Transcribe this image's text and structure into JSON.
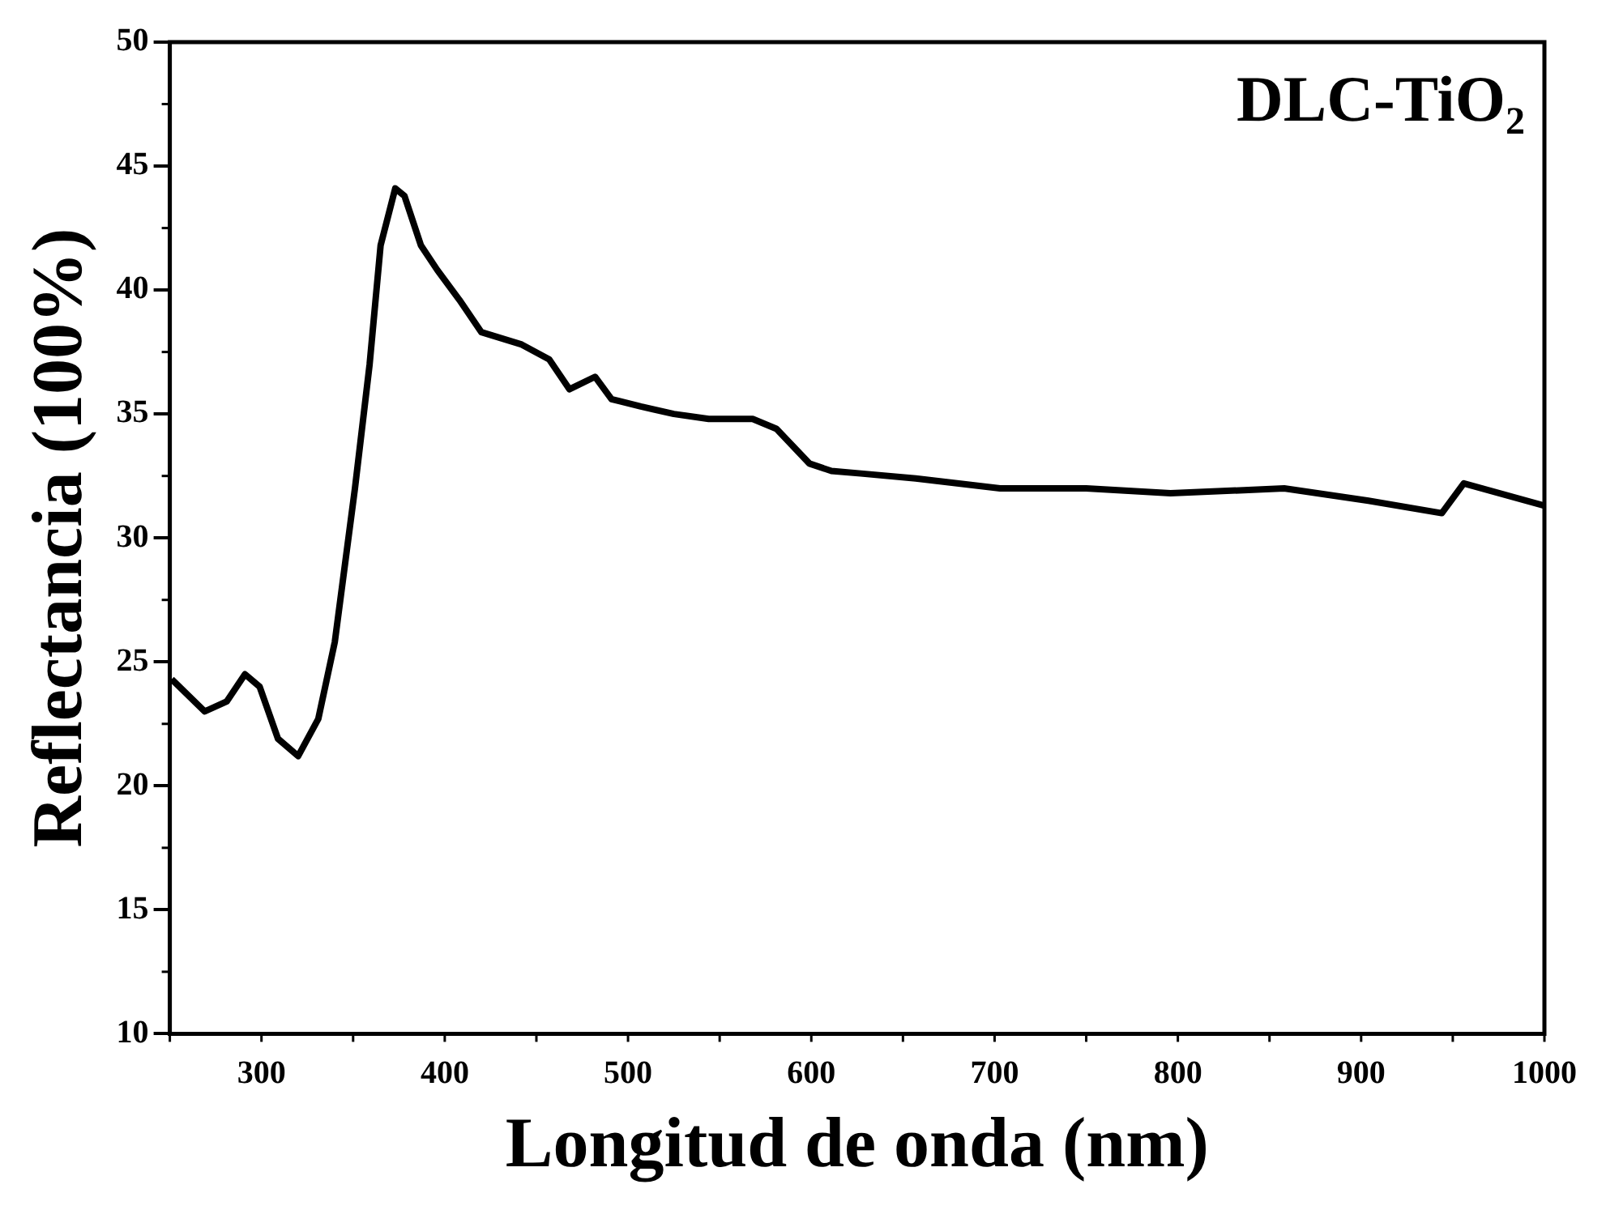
{
  "chart_data": {
    "type": "line",
    "title": "DLC-TiO₂",
    "xlabel": "Longitud de onda (nm)",
    "ylabel": "Reflectancia (100%)",
    "xlim": [
      250,
      1000
    ],
    "xticks": [
      300,
      400,
      500,
      600,
      700,
      800,
      900,
      1000
    ],
    "ylim": [
      10,
      50
    ],
    "yticks": [
      10,
      15,
      20,
      25,
      30,
      35,
      40,
      45,
      50
    ],
    "grid": false,
    "marker": "none",
    "line_style": "solid",
    "series": [
      {
        "color": "#000000",
        "x": [
          251,
          269,
          281,
          291,
          299,
          309,
          320,
          331,
          340,
          351,
          359,
          365,
          373,
          378,
          387,
          396,
          408,
          420,
          442,
          457,
          468,
          482,
          491,
          507,
          525,
          544,
          568,
          581,
          599,
          611,
          627,
          657,
          703,
          750,
          796,
          858,
          904,
          944,
          956,
          1000
        ],
        "values": [
          24.3,
          23.0,
          23.4,
          24.5,
          24.0,
          21.9,
          21.2,
          22.7,
          25.8,
          32.0,
          37.0,
          41.8,
          44.1,
          43.8,
          41.8,
          40.8,
          39.6,
          38.3,
          37.8,
          37.2,
          36.0,
          36.5,
          35.6,
          35.3,
          35.0,
          34.8,
          34.8,
          34.4,
          33.0,
          32.7,
          32.6,
          32.4,
          32.0,
          32.0,
          31.8,
          32.0,
          31.5,
          31.0,
          32.2,
          31.3
        ]
      }
    ]
  }
}
